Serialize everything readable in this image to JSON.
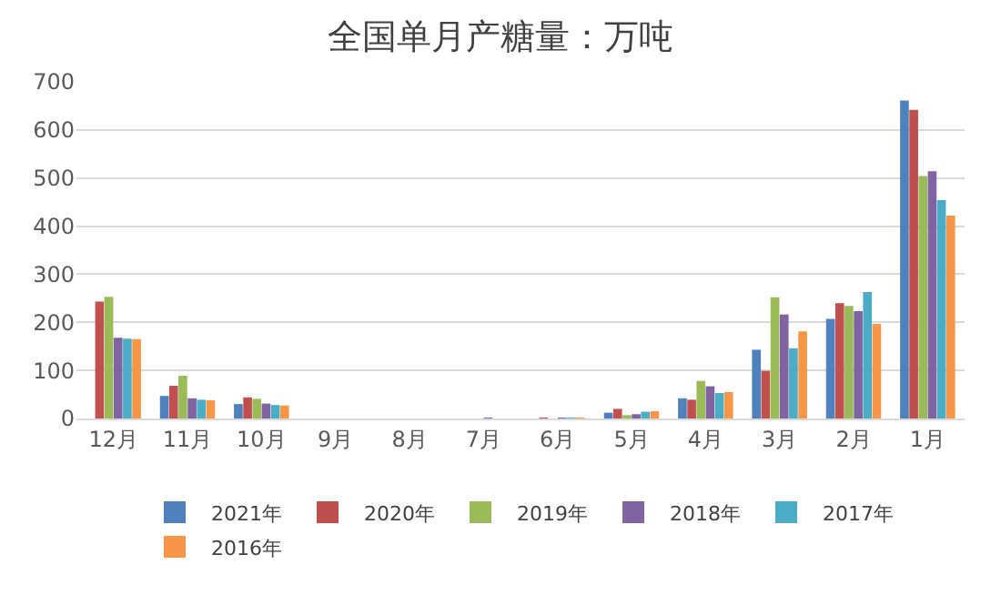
{
  "chart_data": {
    "type": "bar",
    "title": "全国单月产糖量：万吨",
    "categories": [
      "12月",
      "11月",
      "10月",
      "9月",
      "8月",
      "7月",
      "6月",
      "5月",
      "4月",
      "3月",
      "2月",
      "1月"
    ],
    "series": [
      {
        "name": "2021年",
        "color": "#4f81bd",
        "values": [
          null,
          47,
          30,
          null,
          null,
          null,
          null,
          12,
          42,
          143,
          207,
          661
        ]
      },
      {
        "name": "2020年",
        "color": "#c0504d",
        "values": [
          243,
          68,
          44,
          null,
          null,
          null,
          2,
          20,
          39,
          99,
          240,
          642
        ]
      },
      {
        "name": "2019年",
        "color": "#9bbb59",
        "values": [
          253,
          89,
          41,
          null,
          null,
          null,
          null,
          7,
          78,
          252,
          234,
          504
        ]
      },
      {
        "name": "2018年",
        "color": "#8064a2",
        "values": [
          168,
          42,
          31,
          null,
          null,
          2,
          2,
          9,
          67,
          216,
          223,
          514
        ]
      },
      {
        "name": "2017年",
        "color": "#4bacc6",
        "values": [
          166,
          39,
          28,
          null,
          null,
          null,
          2,
          14,
          53,
          146,
          263,
          454
        ]
      },
      {
        "name": "2016年",
        "color": "#f79646",
        "values": [
          165,
          38,
          27,
          null,
          null,
          null,
          2,
          15,
          55,
          181,
          197,
          422
        ]
      }
    ],
    "ylim": [
      0,
      700
    ],
    "yticks": [
      0,
      100,
      200,
      300,
      400,
      500,
      600,
      700
    ],
    "grid": "y",
    "legend": "bottom"
  }
}
